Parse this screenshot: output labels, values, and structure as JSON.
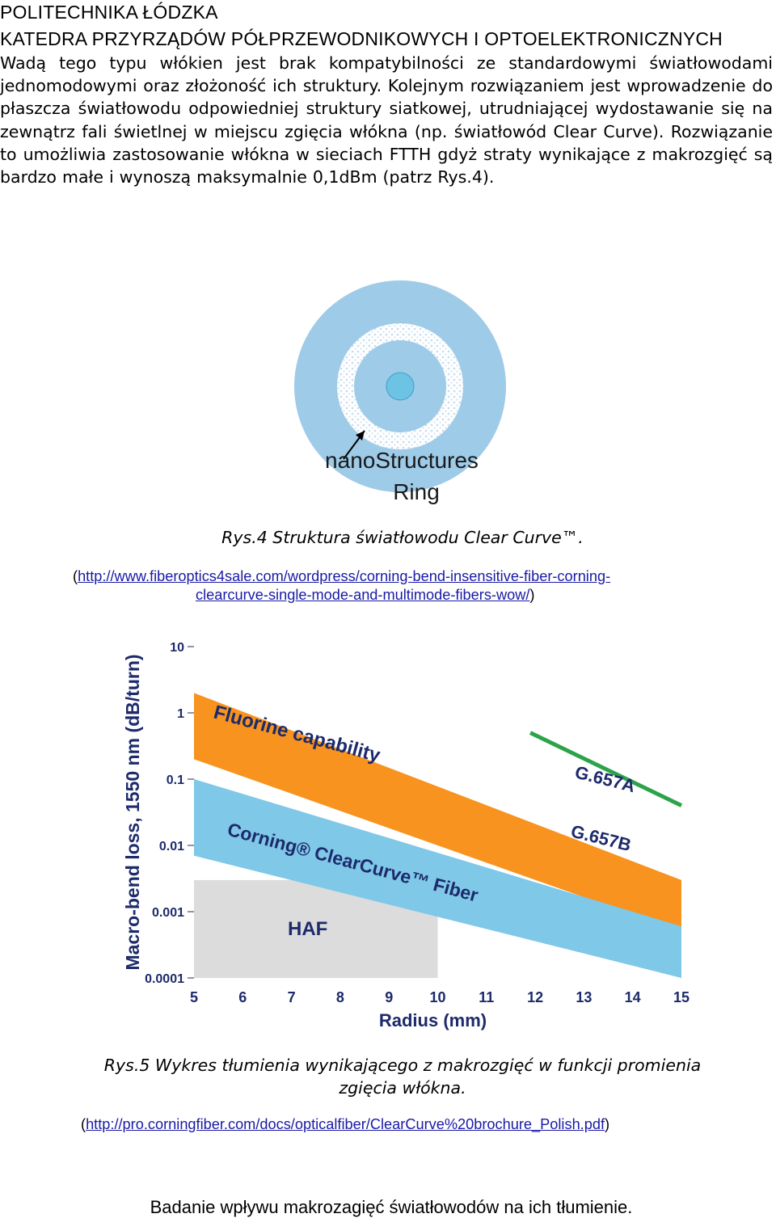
{
  "header": {
    "line1": "POLITECHNIKA ŁÓDZKA",
    "line2": "KATEDRA PRZYRZĄDÓW PÓŁPRZEWODNIKOWYCH I OPTOELEKTRONICZNYCH"
  },
  "body_paragraph": "Wadą tego typu włókien jest brak kompatybilności ze standardowymi światłowodami jednomodowymi oraz złożoność ich struktury. Kolejnym rozwiązaniem jest wprowadzenie do płaszcza światłowodu odpowiedniej struktury siatkowej, utrudniającej wydostawanie się na zewnątrz fali świetlnej w miejscu zgięcia włókna (np. światłowód Clear Curve). Rozwiązanie to umożliwia zastosowanie włókna w sieciach FTTH gdyż straty wynikające z makrozgięć są bardzo małe i wynoszą maksymalnie 0,1dBm (patrz Rys.4).",
  "figure4": {
    "label_line1": "nanoStructures",
    "label_line2": "Ring",
    "colors": {
      "outer": "#9ecbe8",
      "ring": "#ffffff",
      "ring_dots": "#c9def0",
      "core": "#6cc3e4"
    },
    "caption": "Rys.4 Struktura światłowodu Clear Curve™.",
    "source_open": "(",
    "source_link_part1": "http://www.fiberoptics4sale.com/wordpress/corning-bend-insensitive-fiber-corning-",
    "source_link_part2": "clearcurve-single-mode-and-multimode-fibers-wow/",
    "source_close": ")"
  },
  "chart_data": {
    "type": "area",
    "xlabel": "Radius (mm)",
    "ylabel": "Macro-bend loss, 1550 nm (dB/turn)",
    "x_ticks": [
      "5",
      "6",
      "7",
      "8",
      "9",
      "10",
      "11",
      "12",
      "13",
      "14",
      "15"
    ],
    "y_ticks": [
      "10",
      "1",
      "0.1",
      "0.01",
      "0.001",
      "0.0001"
    ],
    "xlim": [
      5,
      15
    ],
    "ylim": [
      0.0001,
      10
    ],
    "y_scale": "log",
    "grid": false,
    "bands": [
      {
        "name": "Fluorine capability",
        "color": "#f7931e",
        "upper": [
          [
            5,
            2.0
          ],
          [
            15,
            0.003
          ]
        ],
        "lower": [
          [
            5,
            0.2
          ],
          [
            15,
            0.0005
          ]
        ]
      },
      {
        "name": "Corning® ClearCurve™ Fiber",
        "color": "#7fc8e8",
        "upper": [
          [
            5,
            0.1
          ],
          [
            15,
            0.0006
          ]
        ],
        "lower": [
          [
            5,
            0.007
          ],
          [
            15,
            0.0001
          ]
        ]
      }
    ],
    "lines": [
      {
        "name": "G.657A",
        "color": "#2ca34a",
        "points": [
          [
            11.9,
            0.5
          ],
          [
            15,
            0.04
          ]
        ]
      }
    ],
    "labels": {
      "g657b": "G.657B",
      "haf": "HAF"
    },
    "haf_region": {
      "x": [
        5,
        10
      ],
      "y": [
        0.0001,
        0.003
      ],
      "color": "#dcdcdc"
    }
  },
  "figure5": {
    "caption_line1": "Rys.5 Wykres tłumienia wynikającego z makrozgięć w funkcji promienia",
    "caption_line2": "zgięcia włókna.",
    "source_open": "(",
    "source_link": "http://pro.corningfiber.com/docs/opticalfiber/ClearCurve%20brochure_Polish.pdf",
    "source_close": ")"
  },
  "footer": "Badanie wpływu makrozagięć światłowodów na ich tłumienie."
}
